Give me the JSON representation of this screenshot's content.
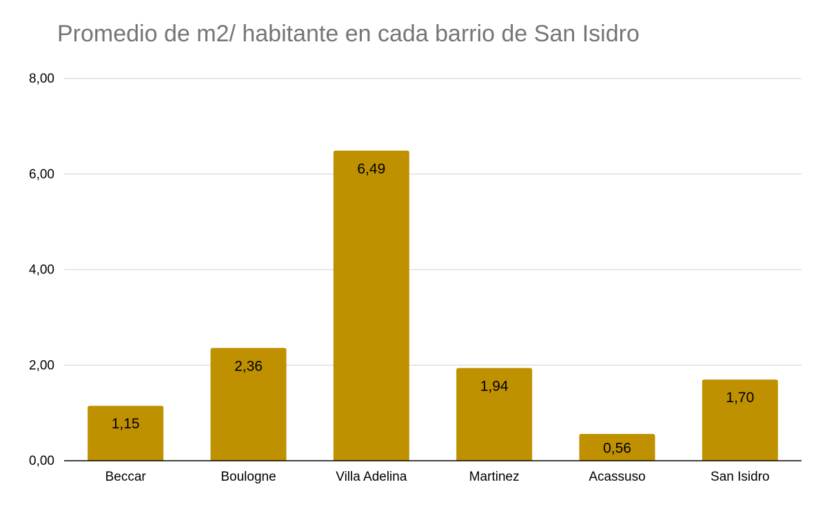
{
  "chart_data": {
    "type": "bar",
    "title": "Promedio de m2/ habitante en cada barrio de San Isidro",
    "categories": [
      "Beccar",
      "Boulogne",
      "Villa Adelina",
      "Martinez",
      "Acassuso",
      "San Isidro"
    ],
    "values": [
      1.15,
      2.36,
      6.49,
      1.94,
      0.56,
      1.7
    ],
    "value_labels": [
      "1,15",
      "2,36",
      "6,49",
      "1,94",
      "0,56",
      "1,70"
    ],
    "ylim": [
      0,
      8
    ],
    "yticks": [
      0,
      2,
      4,
      6,
      8
    ],
    "ytick_labels": [
      "0,00",
      "2,00",
      "4,00",
      "6,00",
      "8,00"
    ],
    "xlabel": "",
    "ylabel": "",
    "grid": true,
    "legend": "none",
    "colors": {
      "bar": "#BF9000",
      "grid": "#D9D9D9",
      "baseline": "#000000",
      "title": "#757575",
      "text": "#000000"
    }
  }
}
